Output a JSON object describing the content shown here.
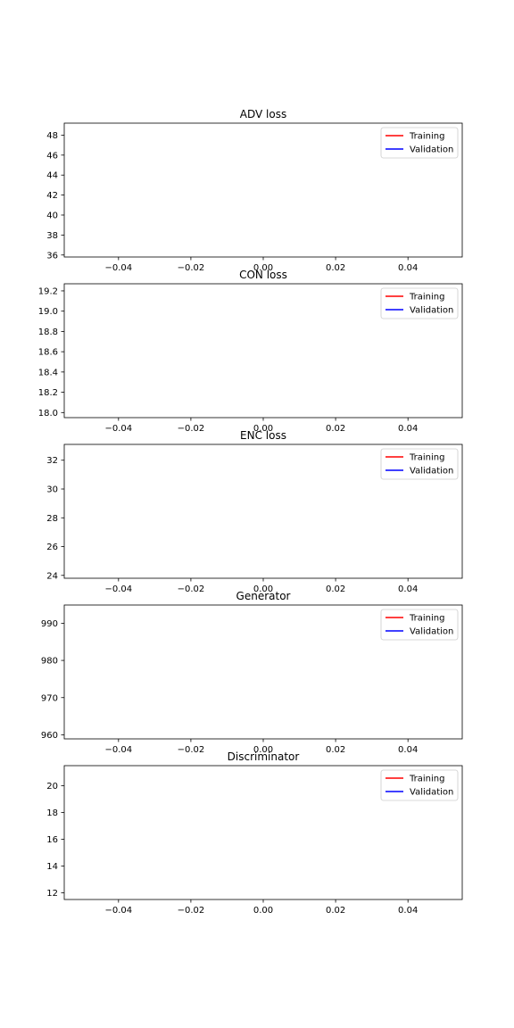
{
  "chart_data": [
    {
      "type": "line",
      "title": "ADV loss",
      "xlabel": "",
      "ylabel": "",
      "xlim": [
        -0.055,
        0.055
      ],
      "ylim": [
        35.8,
        49.2
      ],
      "xticks": [
        -0.04,
        -0.02,
        0.0,
        0.02,
        0.04
      ],
      "xtick_labels": [
        "−0.04",
        "−0.02",
        "0.00",
        "0.02",
        "0.04"
      ],
      "yticks": [
        36,
        38,
        40,
        42,
        44,
        46,
        48
      ],
      "ytick_labels": [
        "36",
        "38",
        "40",
        "42",
        "44",
        "46",
        "48"
      ],
      "series": [
        {
          "name": "Training",
          "color": "#ff0000",
          "x": [],
          "y": []
        },
        {
          "name": "Validation",
          "color": "#0000ff",
          "x": [],
          "y": []
        }
      ],
      "legend": "top-right",
      "grid": false
    },
    {
      "type": "line",
      "title": "CON loss",
      "xlabel": "",
      "ylabel": "",
      "xlim": [
        -0.055,
        0.055
      ],
      "ylim": [
        17.95,
        19.27
      ],
      "xticks": [
        -0.04,
        -0.02,
        0.0,
        0.02,
        0.04
      ],
      "xtick_labels": [
        "−0.04",
        "−0.02",
        "0.00",
        "0.02",
        "0.04"
      ],
      "yticks": [
        18.0,
        18.2,
        18.4,
        18.6,
        18.8,
        19.0,
        19.2
      ],
      "ytick_labels": [
        "18.0",
        "18.2",
        "18.4",
        "18.6",
        "18.8",
        "19.0",
        "19.2"
      ],
      "series": [
        {
          "name": "Training",
          "color": "#ff0000",
          "x": [],
          "y": []
        },
        {
          "name": "Validation",
          "color": "#0000ff",
          "x": [],
          "y": []
        }
      ],
      "legend": "top-right",
      "grid": false
    },
    {
      "type": "line",
      "title": "ENC loss",
      "xlabel": "",
      "ylabel": "",
      "xlim": [
        -0.055,
        0.055
      ],
      "ylim": [
        23.8,
        33.1
      ],
      "xticks": [
        -0.04,
        -0.02,
        0.0,
        0.02,
        0.04
      ],
      "xtick_labels": [
        "−0.04",
        "−0.02",
        "0.00",
        "0.02",
        "0.04"
      ],
      "yticks": [
        24,
        26,
        28,
        30,
        32
      ],
      "ytick_labels": [
        "24",
        "26",
        "28",
        "30",
        "32"
      ],
      "series": [
        {
          "name": "Training",
          "color": "#ff0000",
          "x": [],
          "y": []
        },
        {
          "name": "Validation",
          "color": "#0000ff",
          "x": [],
          "y": []
        }
      ],
      "legend": "top-right",
      "grid": false
    },
    {
      "type": "line",
      "title": "Generator",
      "xlabel": "",
      "ylabel": "",
      "xlim": [
        -0.055,
        0.055
      ],
      "ylim": [
        958.9,
        994.9
      ],
      "xticks": [
        -0.04,
        -0.02,
        0.0,
        0.02,
        0.04
      ],
      "xtick_labels": [
        "−0.04",
        "−0.02",
        "0.00",
        "0.02",
        "0.04"
      ],
      "yticks": [
        960,
        970,
        980,
        990
      ],
      "ytick_labels": [
        "960",
        "970",
        "980",
        "990"
      ],
      "series": [
        {
          "name": "Training",
          "color": "#ff0000",
          "x": [],
          "y": []
        },
        {
          "name": "Validation",
          "color": "#0000ff",
          "x": [],
          "y": []
        }
      ],
      "legend": "top-right",
      "grid": false
    },
    {
      "type": "line",
      "title": "Discriminator",
      "xlabel": "",
      "ylabel": "",
      "xlim": [
        -0.055,
        0.055
      ],
      "ylim": [
        11.5,
        21.5
      ],
      "xticks": [
        -0.04,
        -0.02,
        0.0,
        0.02,
        0.04
      ],
      "xtick_labels": [
        "−0.04",
        "−0.02",
        "0.00",
        "0.02",
        "0.04"
      ],
      "yticks": [
        12,
        14,
        16,
        18,
        20
      ],
      "ytick_labels": [
        "12",
        "14",
        "16",
        "18",
        "20"
      ],
      "series": [
        {
          "name": "Training",
          "color": "#ff0000",
          "x": [],
          "y": []
        },
        {
          "name": "Validation",
          "color": "#0000ff",
          "x": [],
          "y": []
        }
      ],
      "legend": "top-right",
      "grid": false
    }
  ]
}
